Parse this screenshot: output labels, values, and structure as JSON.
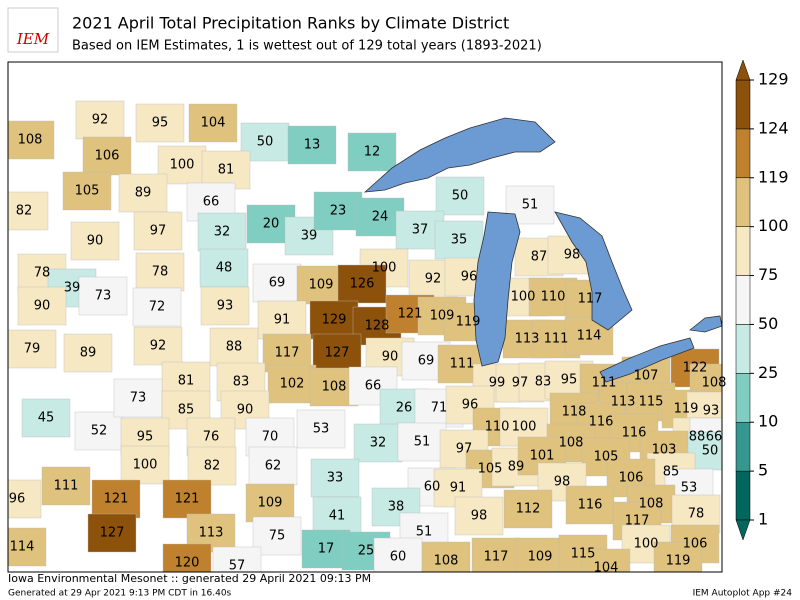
{
  "logo_text": "IEM",
  "title": "2021 April Total Precipitation Ranks by Climate District",
  "subtitle": "Based on IEM Estimates, 1 is wettest out of 129 total years (1893-2021)",
  "colorbar": {
    "ticks": [
      1,
      5,
      10,
      25,
      50,
      75,
      100,
      119,
      124,
      129
    ],
    "colors": [
      "#01665e",
      "#35978f",
      "#80cdc1",
      "#c7eae5",
      "#f5f5f5",
      "#f6e8c3",
      "#dfc27d",
      "#bf812d",
      "#8c510a"
    ]
  },
  "districts": [
    108,
    92,
    95,
    104,
    50,
    13,
    12,
    106,
    100,
    81,
    105,
    89,
    66,
    82,
    50,
    51,
    20,
    39,
    23,
    24,
    37,
    35,
    90,
    97,
    32,
    78,
    39,
    73,
    78,
    48,
    100,
    92,
    96,
    87,
    98,
    69,
    109,
    126,
    90,
    72,
    93,
    91,
    129,
    128,
    121,
    109,
    119,
    100,
    110,
    117,
    79,
    89,
    92,
    88,
    117,
    127,
    90,
    69,
    113,
    111,
    114,
    111,
    122,
    81,
    83,
    102,
    108,
    66,
    99,
    97,
    83,
    95,
    111,
    107,
    108,
    45,
    52,
    73,
    85,
    90,
    26,
    71,
    96,
    113,
    115,
    119,
    93,
    118,
    116,
    53,
    32,
    110,
    100,
    95,
    76,
    70,
    116,
    88,
    66,
    50,
    51,
    97,
    108,
    103,
    100,
    82,
    62,
    105,
    89,
    101,
    105,
    85,
    33,
    60,
    91,
    98,
    106,
    53,
    111,
    96,
    121,
    121,
    109,
    38,
    41,
    112,
    116,
    108,
    98,
    78,
    117,
    127,
    113,
    75,
    51,
    114,
    17,
    25,
    60,
    100,
    106,
    108,
    117,
    109,
    115,
    119,
    120,
    57,
    104
  ],
  "footer_left": "Iowa Environmental Mesonet :: generated 29 April 2021 09:13 PM",
  "footer_small": "Generated at 29 Apr 2021 9:13 PM CDT in 16.40s",
  "footer_right": "IEM Autoplot App #24"
}
